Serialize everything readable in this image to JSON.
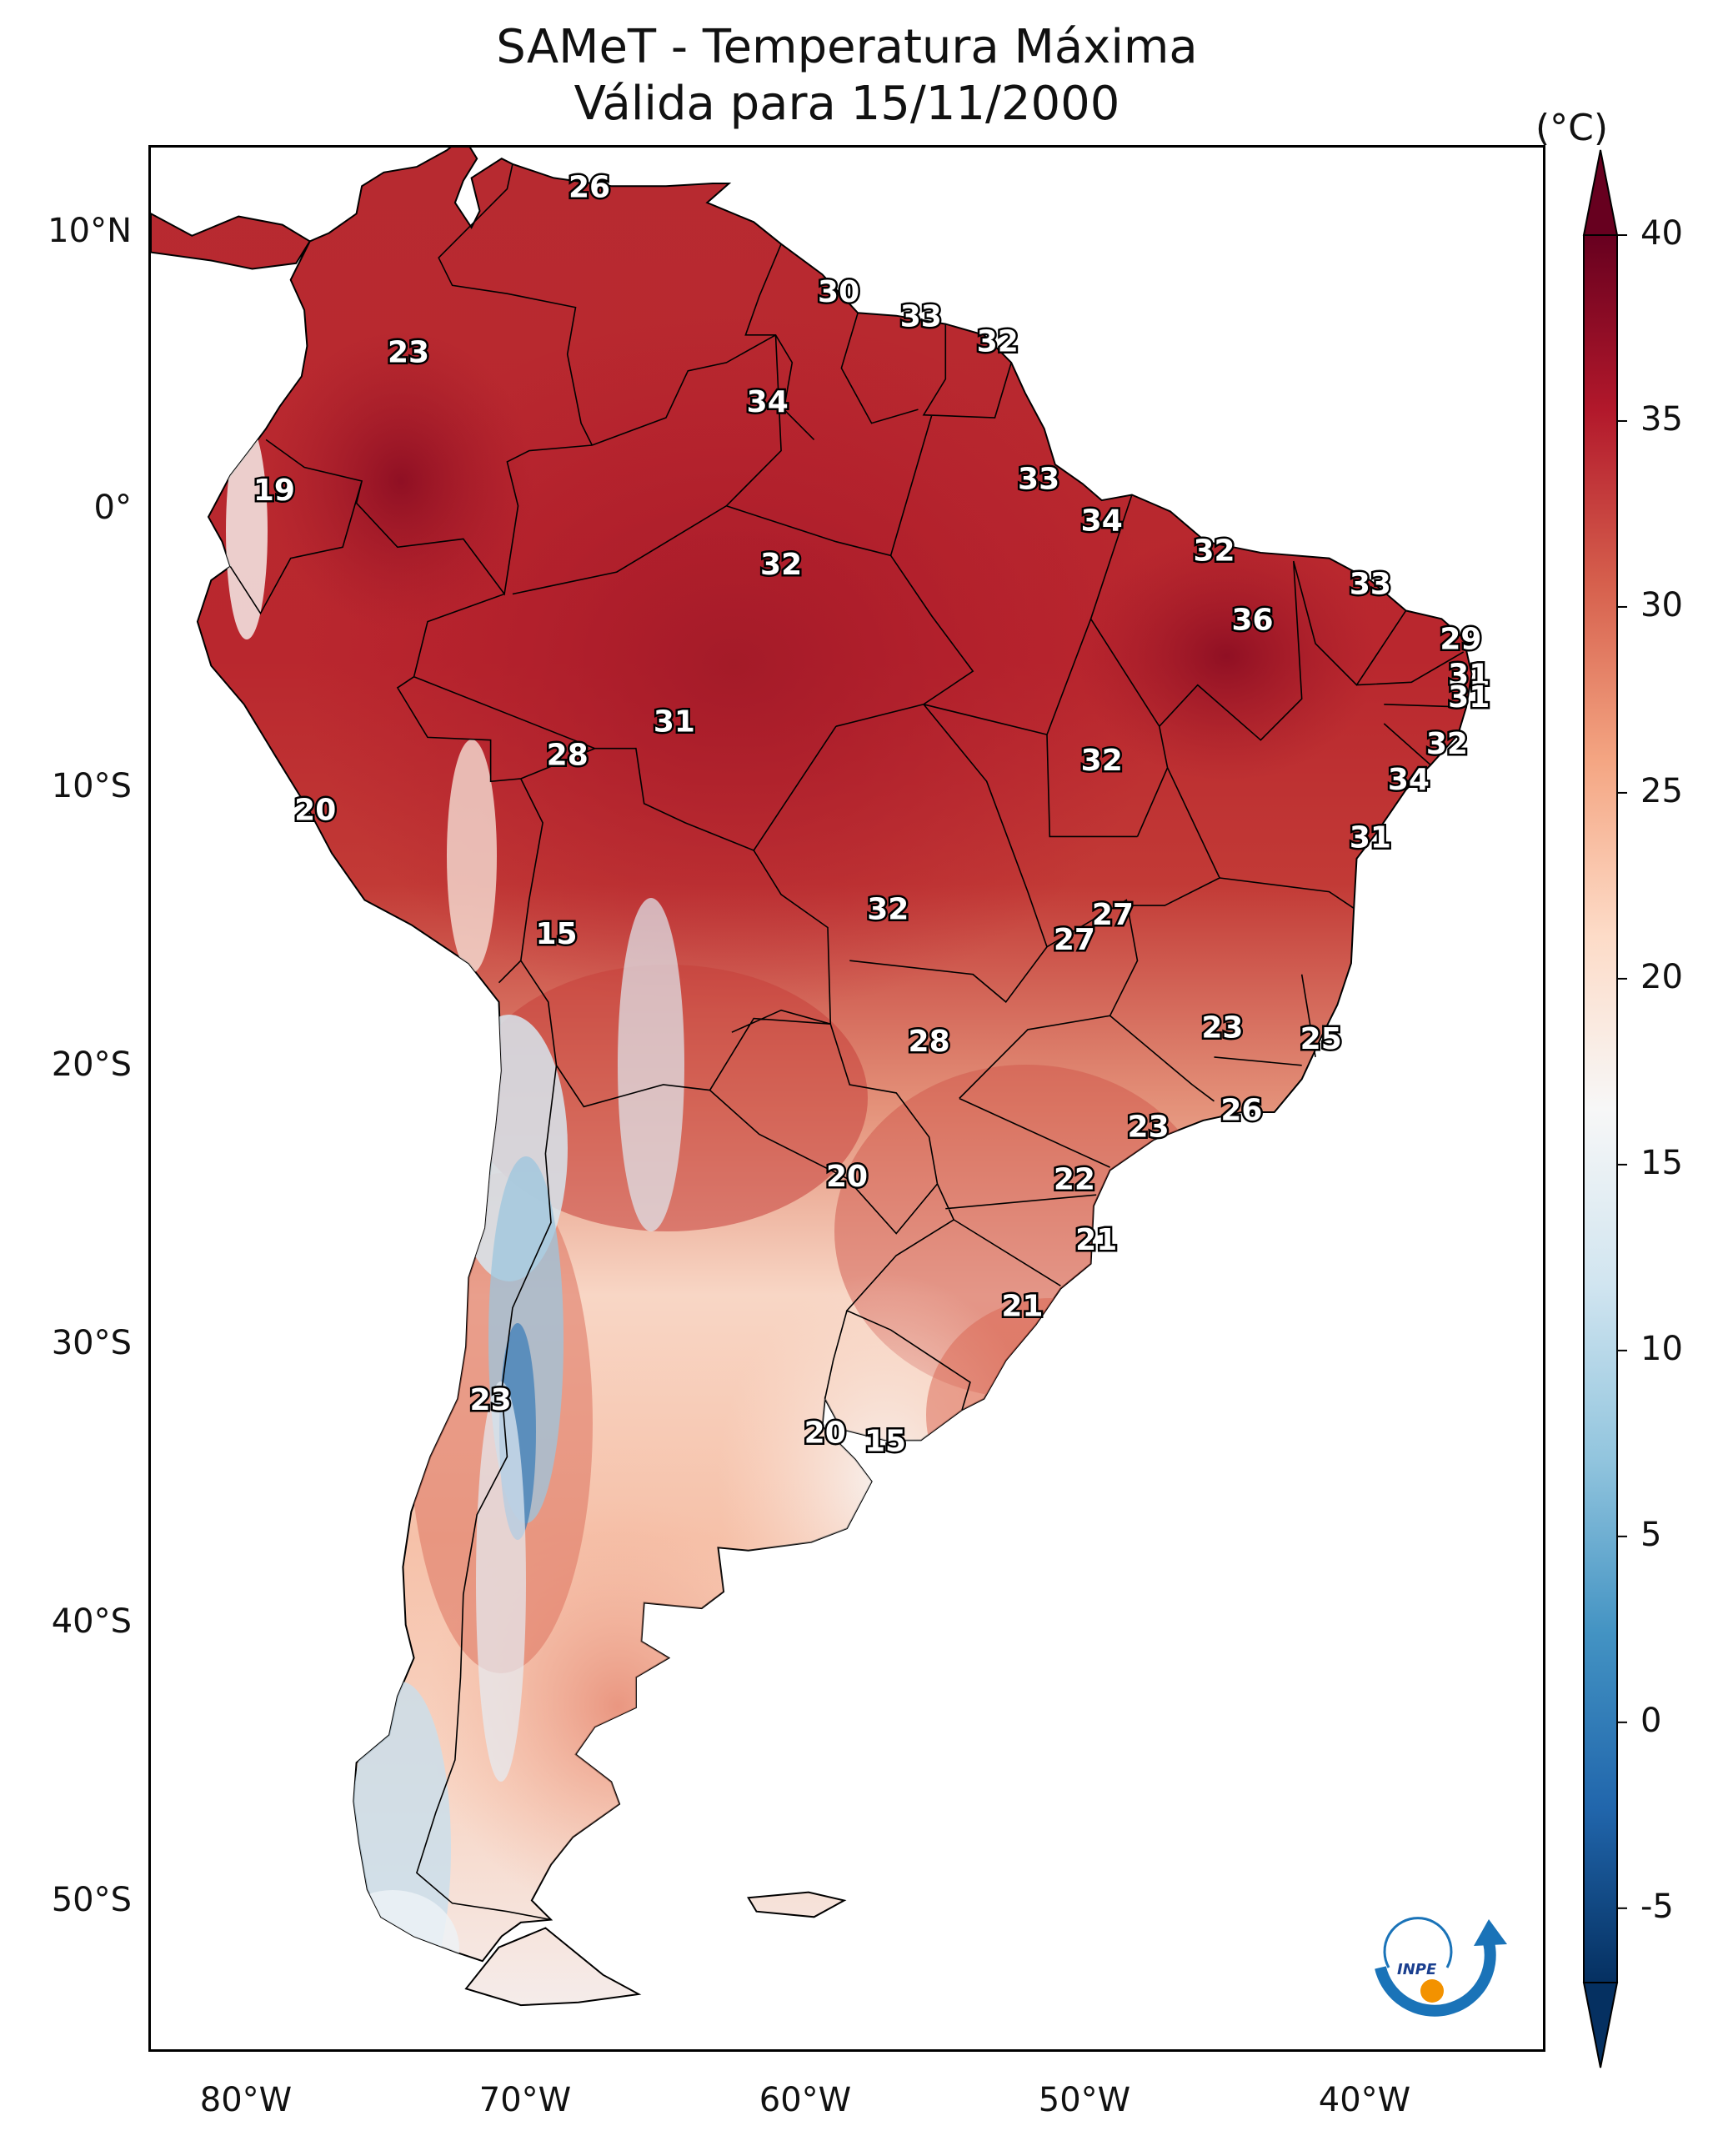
{
  "title": {
    "line1": "SAMeT - Temperatura Máxima",
    "line2": "Válida para 15/11/2000"
  },
  "axes": {
    "lat_labels": [
      "10°N",
      "0°",
      "10°S",
      "20°S",
      "30°S",
      "40°S",
      "50°S"
    ],
    "lon_labels": [
      "80°W",
      "70°W",
      "60°W",
      "50°W",
      "40°W"
    ]
  },
  "colorbar": {
    "unit": "(°C)",
    "ticks": [
      "40",
      "35",
      "30",
      "25",
      "20",
      "15",
      "10",
      "5",
      "0",
      "-5"
    ],
    "min": -7,
    "max": 40,
    "colors": [
      "#053061",
      "#2166ac",
      "#4393c3",
      "#92c5de",
      "#d1e5f0",
      "#f7f7f7",
      "#fddbc7",
      "#f4a582",
      "#d6604d",
      "#b2182b",
      "#67001f"
    ]
  },
  "stations": [
    {
      "value": "26",
      "lon": -67.0,
      "lat": 10.6
    },
    {
      "value": "30",
      "lon": -57.9,
      "lat": 6.8
    },
    {
      "value": "33",
      "lon": -54.9,
      "lat": 5.9
    },
    {
      "value": "32",
      "lon": -52.1,
      "lat": 5.0
    },
    {
      "value": "23",
      "lon": -73.6,
      "lat": 4.6
    },
    {
      "value": "34",
      "lon": -60.5,
      "lat": 2.8
    },
    {
      "value": "19",
      "lon": -78.5,
      "lat": -0.4
    },
    {
      "value": "33",
      "lon": -50.6,
      "lat": 0.0
    },
    {
      "value": "34",
      "lon": -48.3,
      "lat": -1.5
    },
    {
      "value": "32",
      "lon": -44.2,
      "lat": -2.6
    },
    {
      "value": "32",
      "lon": -60.0,
      "lat": -3.1
    },
    {
      "value": "33",
      "lon": -38.5,
      "lat": -3.8
    },
    {
      "value": "36",
      "lon": -42.8,
      "lat": -5.1
    },
    {
      "value": "29",
      "lon": -35.2,
      "lat": -5.8
    },
    {
      "value": "31",
      "lon": -34.9,
      "lat": -7.1
    },
    {
      "value": "31",
      "lon": -34.9,
      "lat": -7.9
    },
    {
      "value": "31",
      "lon": -63.9,
      "lat": -8.8
    },
    {
      "value": "32",
      "lon": -35.7,
      "lat": -9.6
    },
    {
      "value": "28",
      "lon": -67.8,
      "lat": -10.0
    },
    {
      "value": "32",
      "lon": -48.3,
      "lat": -10.2
    },
    {
      "value": "34",
      "lon": -37.1,
      "lat": -10.9
    },
    {
      "value": "20",
      "lon": -77.0,
      "lat": -12.0
    },
    {
      "value": "31",
      "lon": -38.5,
      "lat": -13.0
    },
    {
      "value": "32",
      "lon": -56.1,
      "lat": -15.6
    },
    {
      "value": "27",
      "lon": -47.9,
      "lat": -15.8
    },
    {
      "value": "27",
      "lon": -49.3,
      "lat": -16.7
    },
    {
      "value": "15",
      "lon": -68.2,
      "lat": -16.5
    },
    {
      "value": "23",
      "lon": -43.9,
      "lat": -19.9
    },
    {
      "value": "25",
      "lon": -40.3,
      "lat": -20.3
    },
    {
      "value": "28",
      "lon": -54.6,
      "lat": -20.4
    },
    {
      "value": "26",
      "lon": -43.2,
      "lat": -22.9
    },
    {
      "value": "23",
      "lon": -46.6,
      "lat": -23.5
    },
    {
      "value": "22",
      "lon": -49.3,
      "lat": -25.4
    },
    {
      "value": "20",
      "lon": -57.6,
      "lat": -25.3
    },
    {
      "value": "21",
      "lon": -48.5,
      "lat": -27.6
    },
    {
      "value": "21",
      "lon": -51.2,
      "lat": -30.0
    },
    {
      "value": "23",
      "lon": -70.6,
      "lat": -33.4
    },
    {
      "value": "20",
      "lon": -58.4,
      "lat": -34.6
    },
    {
      "value": "15",
      "lon": -56.2,
      "lat": -34.9
    }
  ],
  "logo": {
    "text": "INPE"
  }
}
